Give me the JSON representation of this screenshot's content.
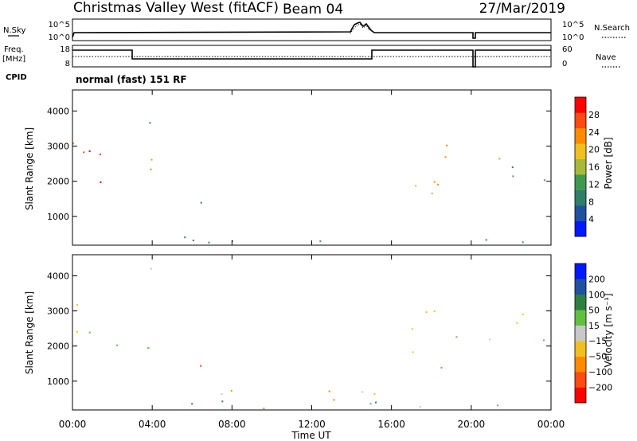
{
  "header": {
    "title": "Christmas Valley West (fitACF)",
    "beam": "Beam 04",
    "date": "27/Mar/2019"
  },
  "strip_sky": {
    "left_label": "N.Sky",
    "left_ticks": [
      "10^5",
      "10^0"
    ],
    "right_label": "N.Search",
    "right_ticks": [
      "10^5",
      "10^0"
    ]
  },
  "strip_freq": {
    "left_label_1": "Freq.",
    "left_label_2": "[MHz]",
    "left_ticks": [
      "18",
      "8"
    ],
    "right_label": "Nave",
    "right_ticks": [
      "60",
      "0"
    ],
    "cpid_label": "CPID",
    "mode_text": "normal (fast) 151 RF"
  },
  "x_axis": {
    "label": "Time UT",
    "ticks": [
      "00:00",
      "04:00",
      "08:00",
      "12:00",
      "16:00",
      "20:00",
      "00:00"
    ]
  },
  "colors": {
    "power_scale": [
      "#0018ff",
      "#2050a0",
      "#2f7f6a",
      "#3f9a50",
      "#a8b838",
      "#f0c020",
      "#ff8a00",
      "#ff4a10",
      "#ff0000"
    ],
    "velocity_scale": [
      "#ff0000",
      "#ff4a10",
      "#ff8a00",
      "#f0c020",
      "#c8c8c8",
      "#60c040",
      "#2f8040",
      "#2050a0",
      "#0018ff"
    ]
  },
  "chart_data": [
    {
      "type": "heatmap",
      "name": "power",
      "xlabel": "",
      "ylabel": "Slant Range [km]",
      "y_ticks": [
        "4000",
        "3000",
        "2000",
        "1000"
      ],
      "xlim_hours": [
        0,
        24
      ],
      "ylim_km": [
        180,
        4600
      ],
      "colorbar_label": "Power [dB]",
      "colorbar_ticks": [
        "28",
        "24",
        "20",
        "16",
        "12",
        "8",
        "4"
      ],
      "regions": [
        {
          "t": [
            0.0,
            2.5
          ],
          "r": [
            1900,
            3200
          ],
          "level": 7
        },
        {
          "t": [
            0.8,
            1.5
          ],
          "r": [
            1800,
            2600
          ],
          "level": 8
        },
        {
          "t": [
            2.8,
            4.4
          ],
          "r": [
            1800,
            3000
          ],
          "level": 5
        },
        {
          "t": [
            3.2,
            4.0
          ],
          "r": [
            3600,
            4300
          ],
          "level": 2
        },
        {
          "t": [
            5.4,
            6.5
          ],
          "r": [
            1000,
            1600
          ],
          "level": 2
        },
        {
          "t": [
            17.0,
            20.0
          ],
          "r": [
            1400,
            3200
          ],
          "level": 5
        },
        {
          "t": [
            20.0,
            24.0
          ],
          "r": [
            2000,
            3000
          ],
          "level": 3
        },
        {
          "t": [
            0.0,
            24.0
          ],
          "r": [
            180,
            450
          ],
          "level": 2
        }
      ]
    },
    {
      "type": "heatmap",
      "name": "velocity",
      "xlabel": "Time UT",
      "ylabel": "Slant Range [km]",
      "y_ticks": [
        "4000",
        "3000",
        "2000",
        "1000"
      ],
      "xlim_hours": [
        0,
        24
      ],
      "ylim_km": [
        180,
        4600
      ],
      "colorbar_label": "Velocity [m s⁻¹]",
      "colorbar_ticks": [
        "200",
        "100",
        "50",
        "15",
        "−15",
        "−50",
        "−100",
        "−200"
      ],
      "regions": [
        {
          "t": [
            0.0,
            2.5
          ],
          "r": [
            1900,
            3200
          ],
          "level": 4
        },
        {
          "t": [
            2.8,
            4.4
          ],
          "r": [
            1800,
            3000
          ],
          "level": 4
        },
        {
          "t": [
            3.2,
            4.0
          ],
          "r": [
            3600,
            4300
          ],
          "level": 3
        },
        {
          "t": [
            5.4,
            6.5
          ],
          "r": [
            1000,
            1600
          ],
          "level": 2
        },
        {
          "t": [
            17.0,
            20.0
          ],
          "r": [
            1400,
            3200
          ],
          "level": 4
        },
        {
          "t": [
            20.0,
            24.0
          ],
          "r": [
            2000,
            3000
          ],
          "level": 4
        },
        {
          "t": [
            7.0,
            15.5
          ],
          "r": [
            180,
            800
          ],
          "level": 3
        },
        {
          "t": [
            0.0,
            24.0
          ],
          "r": [
            180,
            450
          ],
          "level": 5
        }
      ]
    }
  ]
}
